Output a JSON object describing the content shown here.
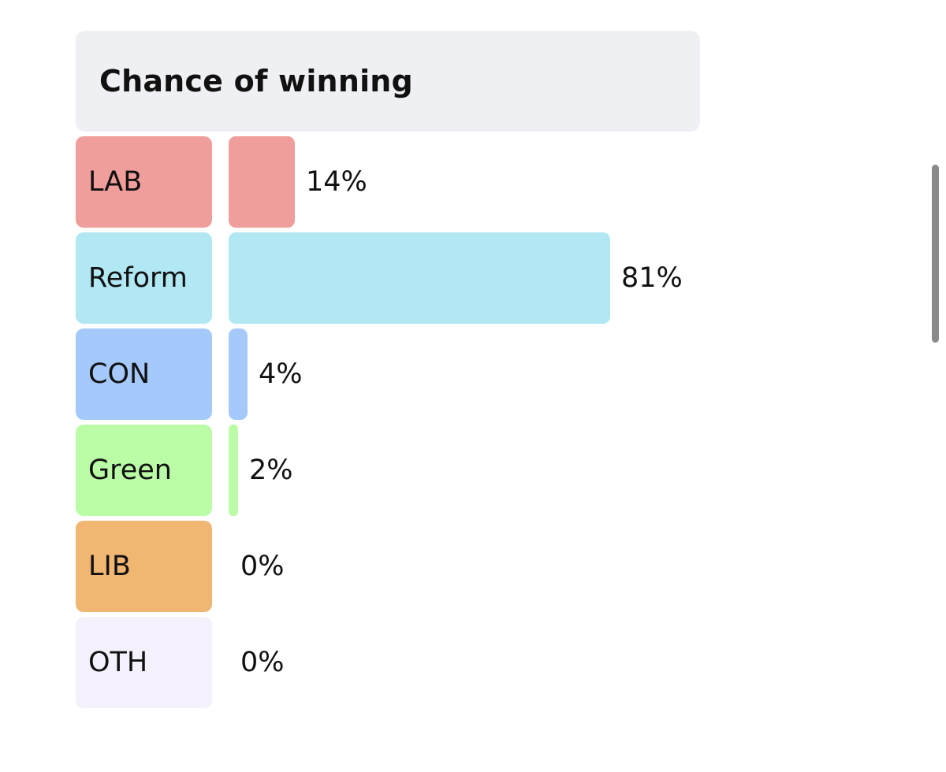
{
  "chart_data": {
    "type": "bar",
    "orientation": "horizontal",
    "title": "Chance of winning",
    "unit": "%",
    "categories": [
      "LAB",
      "Reform",
      "CON",
      "Green",
      "LIB",
      "OTH"
    ],
    "values": [
      14,
      81,
      4,
      2,
      0,
      0
    ],
    "value_labels": [
      "14%",
      "81%",
      "4%",
      "2%",
      "0%",
      "0%"
    ],
    "colors": [
      "#f09e9c",
      "#b1e8f3",
      "#a6c9fb",
      "#bbfca6",
      "#f1b672",
      "#f4f1fd"
    ],
    "xlim": [
      0,
      100
    ],
    "grid": false,
    "legend": "none"
  }
}
